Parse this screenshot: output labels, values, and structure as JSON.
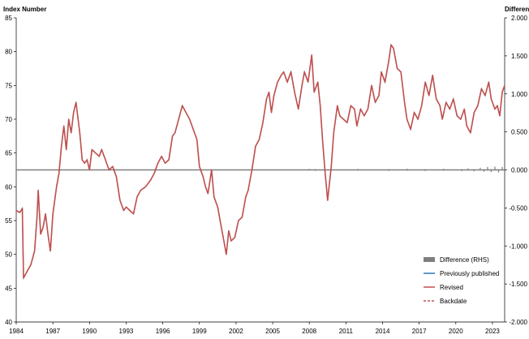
{
  "chart_data": {
    "type": "line",
    "ylabel_left": "Index Number",
    "ylabel_right": "Difference",
    "y_left": {
      "min": 40,
      "max": 85,
      "ticks": [
        40,
        45,
        50,
        55,
        60,
        65,
        70,
        75,
        80,
        85
      ]
    },
    "y_right": {
      "min": -2.0,
      "max": 2.0,
      "ticks": [
        "-2.000",
        "-1.500",
        "-1.000",
        "-0.500",
        "0.000",
        "0.500",
        "1.000",
        "1.500",
        "2.000"
      ]
    },
    "x": {
      "min": 1984.0,
      "max": 2024.0,
      "ticks": [
        "1984",
        "1987",
        "1990",
        "1993",
        "1996",
        "1999",
        "2002",
        "2005",
        "2008",
        "2011",
        "2014",
        "2017",
        "2020",
        "2023"
      ]
    },
    "grid": false,
    "legend_position": "bottom-right",
    "legend": [
      {
        "label": "Difference (RHS)",
        "kind": "bar",
        "color": "#7f7f7f"
      },
      {
        "label": "Previously published",
        "kind": "line",
        "color": "#2e75b6"
      },
      {
        "label": "Revised",
        "kind": "line",
        "color": "#c0504d"
      },
      {
        "label": "Backdate",
        "kind": "dashed",
        "color": "#c0504d"
      }
    ],
    "series": [
      {
        "name": "Revised",
        "color": "#c0504d",
        "points": [
          [
            1984.0,
            56.5
          ],
          [
            1984.3,
            56.2
          ],
          [
            1984.5,
            56.8
          ],
          [
            1984.6,
            46.5
          ],
          [
            1984.9,
            47.5
          ],
          [
            1985.2,
            48.5
          ],
          [
            1985.5,
            50.5
          ],
          [
            1985.7,
            55.5
          ],
          [
            1985.8,
            59.5
          ],
          [
            1986.0,
            53.0
          ],
          [
            1986.2,
            54.0
          ],
          [
            1986.4,
            56.0
          ],
          [
            1986.6,
            53.0
          ],
          [
            1986.8,
            50.5
          ],
          [
            1987.0,
            56.0
          ],
          [
            1987.3,
            60.0
          ],
          [
            1987.5,
            62.0
          ],
          [
            1987.7,
            66.0
          ],
          [
            1987.9,
            69.0
          ],
          [
            1988.1,
            65.5
          ],
          [
            1988.3,
            70.0
          ],
          [
            1988.5,
            68.0
          ],
          [
            1988.7,
            71.0
          ],
          [
            1988.9,
            72.5
          ],
          [
            1989.2,
            68.0
          ],
          [
            1989.4,
            64.0
          ],
          [
            1989.6,
            63.5
          ],
          [
            1989.8,
            64.0
          ],
          [
            1990.0,
            62.5
          ],
          [
            1990.2,
            65.5
          ],
          [
            1990.5,
            65.0
          ],
          [
            1990.8,
            64.5
          ],
          [
            1991.0,
            65.5
          ],
          [
            1991.3,
            64.0
          ],
          [
            1991.6,
            62.5
          ],
          [
            1991.9,
            63.0
          ],
          [
            1992.2,
            61.5
          ],
          [
            1992.5,
            58.0
          ],
          [
            1992.8,
            56.5
          ],
          [
            1993.0,
            57.0
          ],
          [
            1993.3,
            56.5
          ],
          [
            1993.6,
            56.0
          ],
          [
            1993.9,
            58.5
          ],
          [
            1994.2,
            59.5
          ],
          [
            1994.6,
            60.0
          ],
          [
            1995.0,
            61.0
          ],
          [
            1995.3,
            62.0
          ],
          [
            1995.6,
            63.5
          ],
          [
            1995.9,
            64.5
          ],
          [
            1996.2,
            63.5
          ],
          [
            1996.5,
            64.0
          ],
          [
            1996.8,
            67.5
          ],
          [
            1997.0,
            68.0
          ],
          [
            1997.3,
            70.0
          ],
          [
            1997.6,
            72.0
          ],
          [
            1997.9,
            71.0
          ],
          [
            1998.2,
            70.0
          ],
          [
            1998.5,
            68.5
          ],
          [
            1998.8,
            67.0
          ],
          [
            1999.0,
            63.0
          ],
          [
            1999.3,
            61.5
          ],
          [
            1999.5,
            60.0
          ],
          [
            1999.7,
            59.0
          ],
          [
            2000.0,
            62.5
          ],
          [
            2000.2,
            58.5
          ],
          [
            2000.5,
            57.0
          ],
          [
            2000.8,
            54.0
          ],
          [
            2001.0,
            52.0
          ],
          [
            2001.2,
            50.0
          ],
          [
            2001.4,
            53.5
          ],
          [
            2001.6,
            52.0
          ],
          [
            2001.9,
            52.5
          ],
          [
            2002.2,
            55.0
          ],
          [
            2002.5,
            55.5
          ],
          [
            2002.8,
            58.5
          ],
          [
            2003.0,
            59.5
          ],
          [
            2003.3,
            62.5
          ],
          [
            2003.6,
            66.0
          ],
          [
            2003.9,
            67.0
          ],
          [
            2004.2,
            69.5
          ],
          [
            2004.5,
            73.0
          ],
          [
            2004.7,
            74.0
          ],
          [
            2004.9,
            71.0
          ],
          [
            2005.1,
            73.5
          ],
          [
            2005.4,
            75.5
          ],
          [
            2005.7,
            76.5
          ],
          [
            2005.9,
            77.0
          ],
          [
            2006.2,
            75.5
          ],
          [
            2006.5,
            77.0
          ],
          [
            2006.8,
            74.0
          ],
          [
            2007.1,
            71.5
          ],
          [
            2007.4,
            75.0
          ],
          [
            2007.6,
            77.0
          ],
          [
            2007.9,
            75.5
          ],
          [
            2008.2,
            79.5
          ],
          [
            2008.4,
            74.0
          ],
          [
            2008.7,
            75.5
          ],
          [
            2008.9,
            72.0
          ],
          [
            2009.1,
            66.5
          ],
          [
            2009.3,
            62.0
          ],
          [
            2009.5,
            58.0
          ],
          [
            2009.8,
            63.0
          ],
          [
            2010.0,
            68.0
          ],
          [
            2010.3,
            72.0
          ],
          [
            2010.5,
            70.5
          ],
          [
            2010.8,
            70.0
          ],
          [
            2011.1,
            69.5
          ],
          [
            2011.4,
            72.0
          ],
          [
            2011.7,
            71.5
          ],
          [
            2011.9,
            69.0
          ],
          [
            2012.2,
            71.5
          ],
          [
            2012.5,
            70.5
          ],
          [
            2012.8,
            71.5
          ],
          [
            2013.1,
            75.0
          ],
          [
            2013.4,
            72.5
          ],
          [
            2013.7,
            73.5
          ],
          [
            2013.9,
            77.0
          ],
          [
            2014.2,
            75.5
          ],
          [
            2014.5,
            78.5
          ],
          [
            2014.7,
            81.0
          ],
          [
            2014.9,
            80.5
          ],
          [
            2015.2,
            77.5
          ],
          [
            2015.5,
            77.0
          ],
          [
            2015.8,
            72.5
          ],
          [
            2016.0,
            70.0
          ],
          [
            2016.3,
            68.5
          ],
          [
            2016.6,
            71.0
          ],
          [
            2016.9,
            70.0
          ],
          [
            2017.2,
            72.0
          ],
          [
            2017.5,
            75.5
          ],
          [
            2017.8,
            73.5
          ],
          [
            2018.1,
            76.5
          ],
          [
            2018.4,
            73.0
          ],
          [
            2018.7,
            72.0
          ],
          [
            2018.9,
            70.0
          ],
          [
            2019.2,
            72.5
          ],
          [
            2019.5,
            71.5
          ],
          [
            2019.8,
            73.0
          ],
          [
            2020.1,
            70.5
          ],
          [
            2020.4,
            70.0
          ],
          [
            2020.7,
            71.5
          ],
          [
            2020.9,
            69.0
          ],
          [
            2021.2,
            68.0
          ],
          [
            2021.5,
            71.0
          ],
          [
            2021.8,
            72.0
          ],
          [
            2022.1,
            74.5
          ],
          [
            2022.4,
            73.5
          ],
          [
            2022.7,
            75.5
          ],
          [
            2022.9,
            73.0
          ],
          [
            2023.2,
            71.5
          ],
          [
            2023.4,
            72.0
          ],
          [
            2023.6,
            70.5
          ],
          [
            2023.8,
            74.0
          ],
          [
            2024.0,
            75.0
          ]
        ]
      },
      {
        "name": "Difference (RHS)",
        "color": "#7f7f7f",
        "bars": [
          [
            2008.0,
            0.005
          ],
          [
            2008.5,
            -0.005
          ],
          [
            2012.0,
            0.004
          ],
          [
            2014.5,
            -0.005
          ],
          [
            2016.0,
            0.006
          ],
          [
            2017.5,
            -0.006
          ],
          [
            2019.0,
            0.007
          ],
          [
            2020.5,
            -0.008
          ],
          [
            2021.0,
            0.012
          ],
          [
            2021.5,
            -0.01
          ],
          [
            2022.0,
            0.02
          ],
          [
            2022.3,
            -0.015
          ],
          [
            2022.6,
            0.03
          ],
          [
            2022.9,
            -0.02
          ],
          [
            2023.2,
            0.035
          ],
          [
            2023.5,
            -0.025
          ],
          [
            2023.8,
            0.03
          ]
        ]
      }
    ]
  }
}
